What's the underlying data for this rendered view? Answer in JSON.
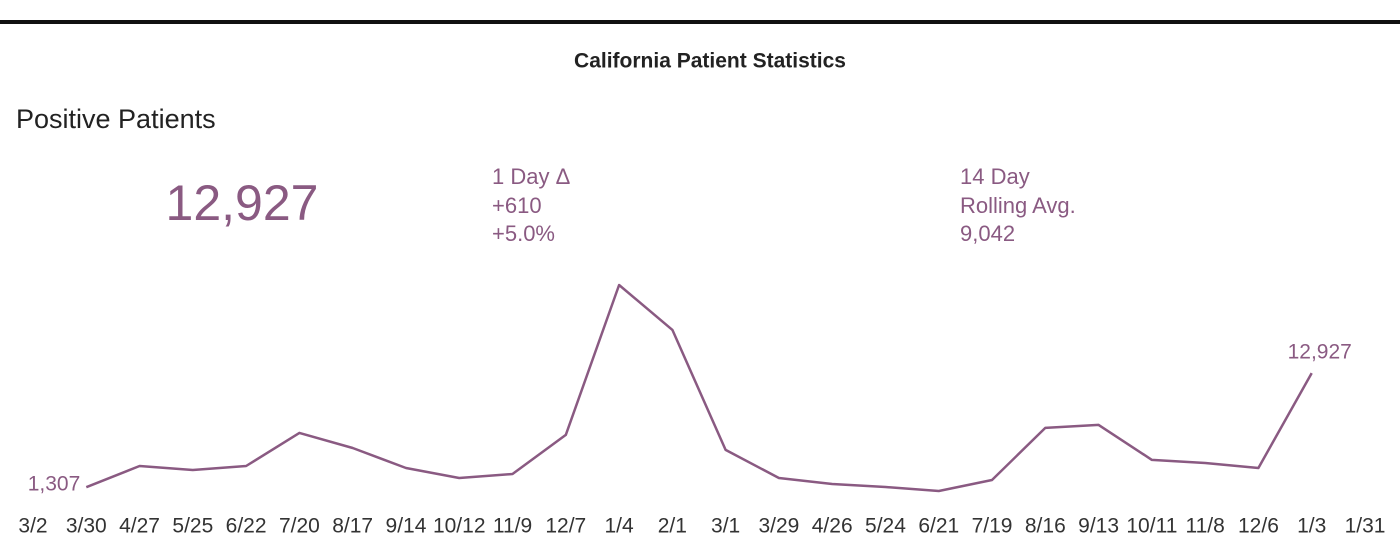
{
  "header": {
    "title": "California Patient Statistics"
  },
  "kpi": {
    "label": "Positive Patients",
    "value": "12,927",
    "delta_label": "1 Day Δ",
    "delta": "+610",
    "delta_pct": "+5.0%",
    "avg_label_1": "14 Day",
    "avg_label_2": "Rolling Avg.",
    "avg": "9,042"
  },
  "chart_data": {
    "type": "line",
    "color": "#8a5a82",
    "categories": [
      "3/2",
      "3/30",
      "4/27",
      "5/25",
      "6/22",
      "7/20",
      "8/17",
      "9/14",
      "10/12",
      "11/9",
      "12/7",
      "1/4",
      "2/1",
      "3/1",
      "3/29",
      "4/26",
      "5/24",
      "6/21",
      "7/19",
      "8/16",
      "9/13",
      "10/11",
      "11/8",
      "12/6",
      "1/3",
      "1/31"
    ],
    "values": [
      null,
      1307,
      3466,
      3060,
      3466,
      6830,
      5300,
      3260,
      2240,
      2650,
      6630,
      21900,
      17330,
      5100,
      2240,
      1630,
      1325,
      920,
      2040,
      7340,
      7650,
      4080,
      3770,
      3260,
      12927,
      null
    ],
    "value_labels": [
      null,
      "1,307",
      null,
      null,
      null,
      null,
      null,
      null,
      null,
      null,
      null,
      null,
      null,
      null,
      null,
      null,
      null,
      null,
      null,
      null,
      null,
      null,
      null,
      null,
      "12,927",
      null
    ]
  }
}
